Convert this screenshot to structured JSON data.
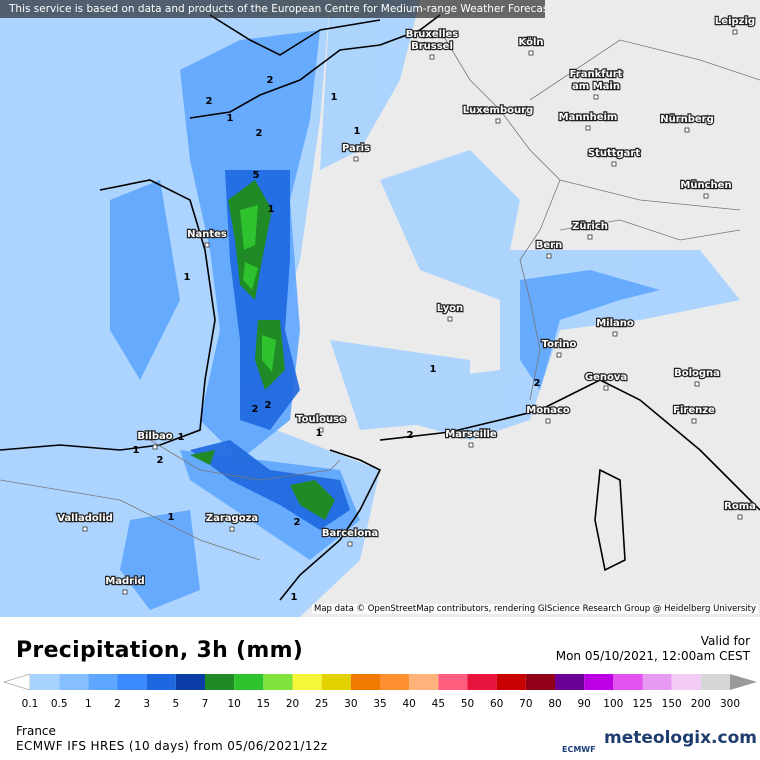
{
  "notice": "This service is based on data and products of the European Centre for Medium-range Weather Forecasts (ECMWF)",
  "attribution": "Map data © OpenStreetMap contributors, rendering GIScience Research Group @ Heidelberg University",
  "cities": [
    "Bruxelles",
    "Brussel",
    "Köln",
    "Leipzig",
    "Frankfurt",
    "am Main",
    "Luxembourg",
    "Mannheim",
    "Nürnberg",
    "Paris",
    "Stuttgart",
    "München",
    "Nantes",
    "Zürich",
    "Bern",
    "Lyon",
    "Milano",
    "Torino",
    "Genova",
    "Bologna",
    "Monaco",
    "Toulouse",
    "Marseille",
    "Firenze",
    "Bilbao",
    "Zaragoza",
    "Valladolid",
    "Barcelona",
    "Roma",
    "Madrid"
  ],
  "contour_labels": [
    "2",
    "2",
    "1",
    "2",
    "1",
    "1",
    "5",
    "1",
    "1",
    "2",
    "2",
    "1",
    "2",
    "1",
    "2",
    "1",
    "1",
    "2",
    "2",
    "1",
    "1"
  ],
  "title": "Precipitation, 3h (mm)",
  "valid_label": "Valid for",
  "valid_time": "Mon 05/10/2021, 12:00am CEST",
  "legend": {
    "labels": [
      "0.1",
      "0.5",
      "1",
      "2",
      "3",
      "5",
      "7",
      "10",
      "15",
      "20",
      "25",
      "30",
      "35",
      "40",
      "45",
      "50",
      "60",
      "70",
      "80",
      "90",
      "100",
      "125",
      "150",
      "200",
      "300"
    ],
    "colors": [
      "#a9d3ff",
      "#86bfff",
      "#5fa6ff",
      "#3a8aff",
      "#1d68e0",
      "#0b3da6",
      "#1f8a26",
      "#2ec22e",
      "#7fe33c",
      "#f5f53a",
      "#e3d200",
      "#f07a00",
      "#ff9030",
      "#ffb27a",
      "#ff5e7e",
      "#e8143e",
      "#c80000",
      "#93001a",
      "#6a0096",
      "#bb00e6",
      "#e253f0",
      "#e79af2",
      "#f3ccf6",
      "#d6d6d6"
    ],
    "under_color": "#ffffff",
    "over_color": "#9a9a9a"
  },
  "region": "France",
  "model": "ECMWF IFS HRES (10 days) from 05/06/2021/12z",
  "ecmwf_logo": "ECMWF",
  "brand": "meteologix.com"
}
